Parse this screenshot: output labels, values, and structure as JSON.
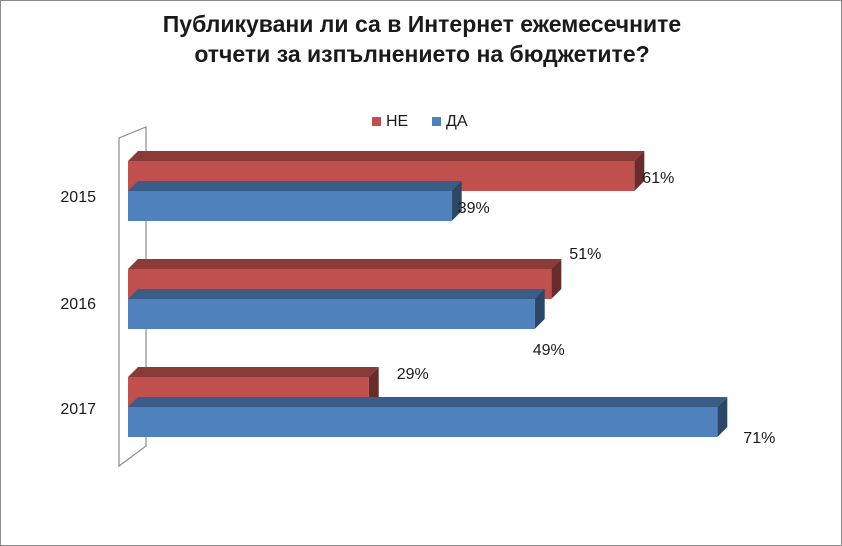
{
  "chart_data": {
    "type": "bar",
    "orientation": "horizontal",
    "style": "3d",
    "title_lines": [
      "Публикувани ли са в Интернет ежемесечните",
      "отчети за изпълнението на бюджетите?"
    ],
    "categories": [
      "2015",
      "2016",
      "2017"
    ],
    "series": [
      {
        "name": "НЕ",
        "values": [
          61,
          51,
          29
        ],
        "color": "#c0504d"
      },
      {
        "name": "ДА",
        "values": [
          39,
          49,
          71
        ],
        "color": "#4f81bd"
      }
    ],
    "value_suffix": "%",
    "xlim": [
      0,
      100
    ],
    "legend_position": "top",
    "grid": false
  }
}
